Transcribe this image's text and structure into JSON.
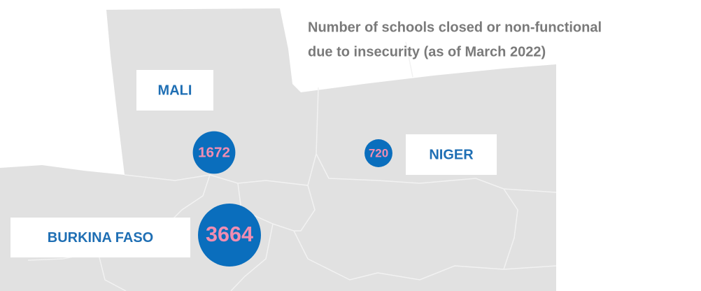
{
  "title": [
    "Number of schools closed or non-functional",
    "due to insecurity (as of March 2022)"
  ],
  "countries": [
    {
      "name": "MALI",
      "value": 1672
    },
    {
      "name": "NIGER",
      "value": 720
    },
    {
      "name": "BURKINA FASO",
      "value": 3664
    }
  ]
}
